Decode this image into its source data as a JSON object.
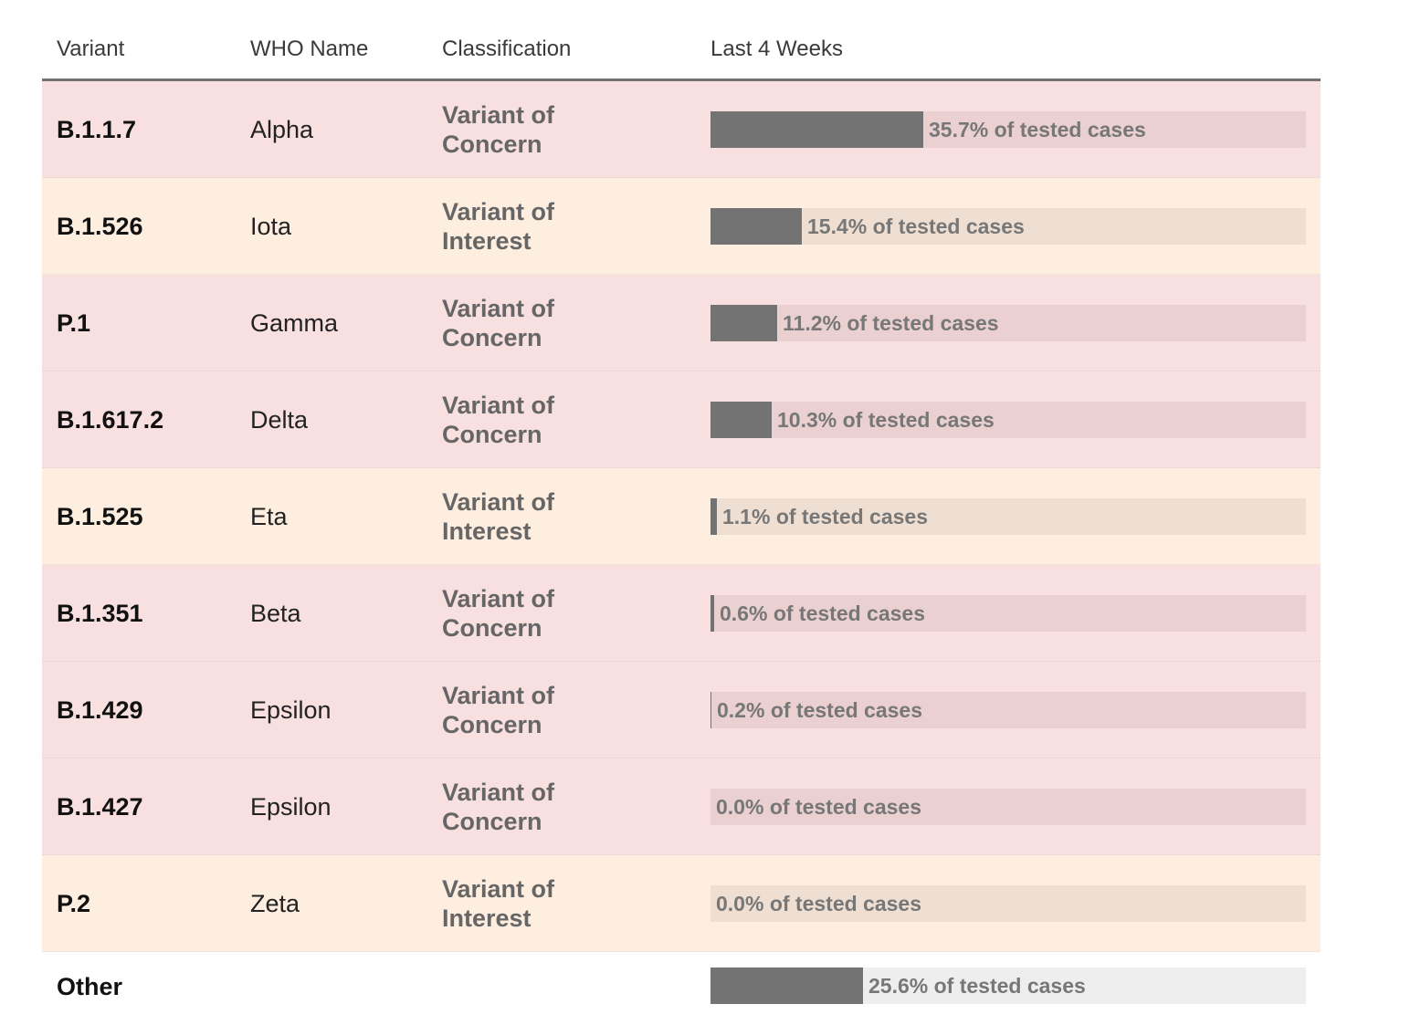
{
  "header": {
    "variant": "Variant",
    "who_name": "WHO Name",
    "classification": "Classification",
    "last4": "Last 4 Weeks"
  },
  "colors": {
    "concern_row": "#f8dfe0",
    "interest_row": "#fdeee0",
    "bar": "#737373"
  },
  "rows": [
    {
      "variant": "B.1.1.7",
      "who": "Alpha",
      "classification": "Variant of Concern",
      "type": "concern",
      "pct": 35.7,
      "label": "35.7% of tested cases"
    },
    {
      "variant": "B.1.526",
      "who": "Iota",
      "classification": "Variant of Interest",
      "type": "interest",
      "pct": 15.4,
      "label": "15.4% of tested cases"
    },
    {
      "variant": "P.1",
      "who": "Gamma",
      "classification": "Variant of Concern",
      "type": "concern",
      "pct": 11.2,
      "label": "11.2% of tested cases"
    },
    {
      "variant": "B.1.617.2",
      "who": "Delta",
      "classification": "Variant of Concern",
      "type": "concern",
      "pct": 10.3,
      "label": "10.3% of tested cases"
    },
    {
      "variant": "B.1.525",
      "who": "Eta",
      "classification": "Variant of Interest",
      "type": "interest",
      "pct": 1.1,
      "label": "1.1% of tested cases"
    },
    {
      "variant": "B.1.351",
      "who": "Beta",
      "classification": "Variant of Concern",
      "type": "concern",
      "pct": 0.6,
      "label": "0.6% of tested cases"
    },
    {
      "variant": "B.1.429",
      "who": "Epsilon",
      "classification": "Variant of Concern",
      "type": "concern",
      "pct": 0.2,
      "label": "0.2% of tested cases"
    },
    {
      "variant": "B.1.427",
      "who": "Epsilon",
      "classification": "Variant of Concern",
      "type": "concern",
      "pct": 0.0,
      "label": "0.0% of tested cases"
    },
    {
      "variant": "P.2",
      "who": "Zeta",
      "classification": "Variant of Interest",
      "type": "interest",
      "pct": 0.0,
      "label": "0.0% of tested cases"
    },
    {
      "variant": "Other",
      "who": "",
      "classification": "",
      "type": "other",
      "pct": 25.6,
      "label": "25.6% of tested cases"
    }
  ],
  "chart_data": {
    "type": "bar",
    "title": "",
    "xlabel": "Last 4 Weeks",
    "ylabel": "",
    "categories": [
      "B.1.1.7",
      "B.1.526",
      "P.1",
      "B.1.617.2",
      "B.1.525",
      "B.1.351",
      "B.1.429",
      "B.1.427",
      "P.2",
      "Other"
    ],
    "values": [
      35.7,
      15.4,
      11.2,
      10.3,
      1.1,
      0.6,
      0.2,
      0.0,
      0.0,
      25.6
    ],
    "unit": "% of tested cases",
    "xlim": [
      0,
      100
    ],
    "orientation": "horizontal"
  }
}
